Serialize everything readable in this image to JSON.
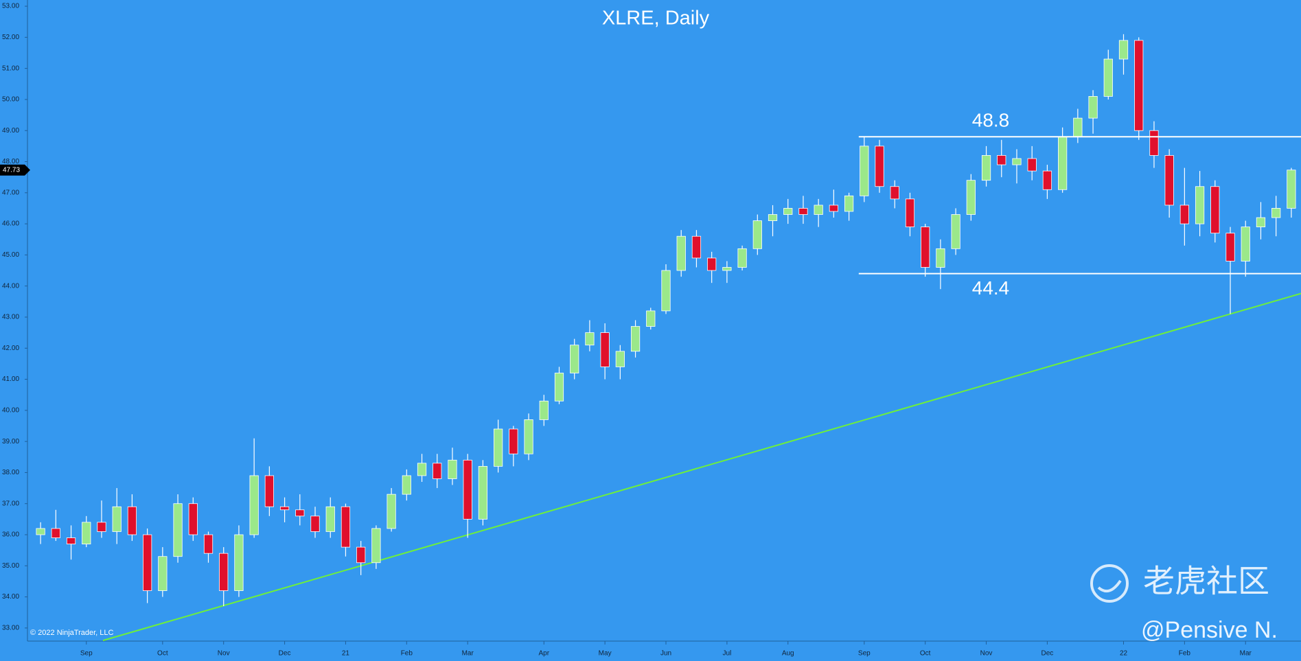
{
  "chart_data": {
    "type": "candlestick",
    "title": "XLRE, Daily",
    "categories": [
      null,
      null,
      null,
      "Sep",
      null,
      null,
      null,
      null,
      "Oct",
      null,
      null,
      null,
      "Nov",
      null,
      null,
      null,
      "Dec",
      null,
      null,
      null,
      "21",
      null,
      null,
      null,
      "Feb",
      null,
      null,
      null,
      "Mar",
      null,
      null,
      null,
      null,
      "Apr",
      null,
      null,
      null,
      "May",
      null,
      null,
      null,
      "Jun",
      null,
      null,
      null,
      "Jul",
      null,
      null,
      null,
      "Aug",
      null,
      null,
      null,
      null,
      "Sep",
      null,
      null,
      null,
      "Oct",
      null,
      null,
      null,
      "Nov",
      null,
      null,
      null,
      "Dec",
      null,
      null,
      null,
      null,
      "22",
      null,
      null,
      null,
      "Feb",
      null,
      null,
      null,
      "Mar",
      null,
      null,
      null
    ],
    "ohlc": [
      [
        36.0,
        36.4,
        35.7,
        36.2
      ],
      [
        36.2,
        36.8,
        35.8,
        35.9
      ],
      [
        35.9,
        36.3,
        35.2,
        35.7
      ],
      [
        35.7,
        36.6,
        35.6,
        36.4
      ],
      [
        36.4,
        37.1,
        35.9,
        36.1
      ],
      [
        36.1,
        37.5,
        35.7,
        36.9
      ],
      [
        36.9,
        37.3,
        35.8,
        36.0
      ],
      [
        36.0,
        36.2,
        33.8,
        34.2
      ],
      [
        34.2,
        35.6,
        34.0,
        35.3
      ],
      [
        35.3,
        37.3,
        35.1,
        37.0
      ],
      [
        37.0,
        37.2,
        35.8,
        36.0
      ],
      [
        36.0,
        36.1,
        35.1,
        35.4
      ],
      [
        35.4,
        35.6,
        33.7,
        34.2
      ],
      [
        34.2,
        36.3,
        34.0,
        36.0
      ],
      [
        36.0,
        39.1,
        35.9,
        37.9
      ],
      [
        37.9,
        38.2,
        36.6,
        36.9
      ],
      [
        36.9,
        37.2,
        36.4,
        36.8
      ],
      [
        36.8,
        37.3,
        36.3,
        36.6
      ],
      [
        36.6,
        36.9,
        35.9,
        36.1
      ],
      [
        36.1,
        37.2,
        35.9,
        36.9
      ],
      [
        36.9,
        37.0,
        35.3,
        35.6
      ],
      [
        35.6,
        35.8,
        34.7,
        35.1
      ],
      [
        35.1,
        36.3,
        34.9,
        36.2
      ],
      [
        36.2,
        37.5,
        36.1,
        37.3
      ],
      [
        37.3,
        38.1,
        37.1,
        37.9
      ],
      [
        37.9,
        38.6,
        37.7,
        38.3
      ],
      [
        38.3,
        38.6,
        37.5,
        37.8
      ],
      [
        37.8,
        38.8,
        37.6,
        38.4
      ],
      [
        38.4,
        38.6,
        35.9,
        36.5
      ],
      [
        36.5,
        38.4,
        36.3,
        38.2
      ],
      [
        38.2,
        39.7,
        38.0,
        39.4
      ],
      [
        39.4,
        39.5,
        38.2,
        38.6
      ],
      [
        38.6,
        39.9,
        38.4,
        39.7
      ],
      [
        39.7,
        40.5,
        39.5,
        40.3
      ],
      [
        40.3,
        41.4,
        40.2,
        41.2
      ],
      [
        41.2,
        42.3,
        41.0,
        42.1
      ],
      [
        42.1,
        42.9,
        41.9,
        42.5
      ],
      [
        42.5,
        42.8,
        41.0,
        41.4
      ],
      [
        41.4,
        42.1,
        41.0,
        41.9
      ],
      [
        41.9,
        42.9,
        41.7,
        42.7
      ],
      [
        42.7,
        43.3,
        42.6,
        43.2
      ],
      [
        43.2,
        44.7,
        43.1,
        44.5
      ],
      [
        44.5,
        45.8,
        44.3,
        45.6
      ],
      [
        45.6,
        45.8,
        44.6,
        44.9
      ],
      [
        44.9,
        45.1,
        44.1,
        44.5
      ],
      [
        44.5,
        44.8,
        44.1,
        44.6
      ],
      [
        44.6,
        45.3,
        44.5,
        45.2
      ],
      [
        45.2,
        46.3,
        45.0,
        46.1
      ],
      [
        46.1,
        46.6,
        45.6,
        46.3
      ],
      [
        46.3,
        46.8,
        46.0,
        46.5
      ],
      [
        46.5,
        46.9,
        46.0,
        46.3
      ],
      [
        46.3,
        46.8,
        45.9,
        46.6
      ],
      [
        46.6,
        47.1,
        46.2,
        46.4
      ],
      [
        46.4,
        47.0,
        46.1,
        46.9
      ],
      [
        46.9,
        48.8,
        46.7,
        48.5
      ],
      [
        48.5,
        48.7,
        47.0,
        47.2
      ],
      [
        47.2,
        47.4,
        46.5,
        46.8
      ],
      [
        46.8,
        47.0,
        45.6,
        45.9
      ],
      [
        45.9,
        46.0,
        44.3,
        44.6
      ],
      [
        44.6,
        45.5,
        43.9,
        45.2
      ],
      [
        45.2,
        46.5,
        45.0,
        46.3
      ],
      [
        46.3,
        47.6,
        46.1,
        47.4
      ],
      [
        47.4,
        48.5,
        47.2,
        48.2
      ],
      [
        48.2,
        48.7,
        47.5,
        47.9
      ],
      [
        47.9,
        48.4,
        47.3,
        48.1
      ],
      [
        48.1,
        48.5,
        47.4,
        47.7
      ],
      [
        47.7,
        47.9,
        46.8,
        47.1
      ],
      [
        47.1,
        49.1,
        47.0,
        48.8
      ],
      [
        48.8,
        49.7,
        48.6,
        49.4
      ],
      [
        49.4,
        50.3,
        48.9,
        50.1
      ],
      [
        50.1,
        51.6,
        50.0,
        51.3
      ],
      [
        51.3,
        52.1,
        50.8,
        51.9
      ],
      [
        51.9,
        52.0,
        48.7,
        49.0
      ],
      [
        49.0,
        49.3,
        47.8,
        48.2
      ],
      [
        48.2,
        48.4,
        46.2,
        46.6
      ],
      [
        46.6,
        47.8,
        45.3,
        46.0
      ],
      [
        46.0,
        47.7,
        45.6,
        47.2
      ],
      [
        47.2,
        47.4,
        45.4,
        45.7
      ],
      [
        45.7,
        45.9,
        43.1,
        44.8
      ],
      [
        44.8,
        46.1,
        44.3,
        45.9
      ],
      [
        45.9,
        46.7,
        45.5,
        46.2
      ],
      [
        46.2,
        46.9,
        45.6,
        46.5
      ],
      [
        46.5,
        47.8,
        46.2,
        47.73
      ]
    ],
    "up_color": "#9be88a",
    "down_color": "#e0102c",
    "ylim": [
      32.6,
      53.2
    ],
    "yticks": [
      {
        "value": 33,
        "label": "33.00"
      },
      {
        "value": 34,
        "label": "34.00"
      },
      {
        "value": 35,
        "label": "35.00"
      },
      {
        "value": 36,
        "label": "36.00"
      },
      {
        "value": 37,
        "label": "37.00"
      },
      {
        "value": 38,
        "label": "38.00"
      },
      {
        "value": 39,
        "label": "39.00"
      },
      {
        "value": 40,
        "label": "40.00"
      },
      {
        "value": 41,
        "label": "41.00"
      },
      {
        "value": 42,
        "label": "42.00"
      },
      {
        "value": 43,
        "label": "43.00"
      },
      {
        "value": 44,
        "label": "44.00"
      },
      {
        "value": 45,
        "label": "45.00"
      },
      {
        "value": 46,
        "label": "46.00"
      },
      {
        "value": 47,
        "label": "47.00"
      },
      {
        "value": 48,
        "label": "48.00"
      },
      {
        "value": 49,
        "label": "49.00"
      },
      {
        "value": 50,
        "label": "50.00"
      },
      {
        "value": 51,
        "label": "51.00"
      },
      {
        "value": 52,
        "label": "52.00"
      },
      {
        "value": 53,
        "label": "53.00"
      }
    ],
    "last_price": 47.73,
    "levels": [
      48.8,
      44.4
    ],
    "trendline": {
      "color": "#6ef03a",
      "at": [
        21,
        78
      ],
      "values": [
        35.0,
        43.1
      ]
    },
    "copyright": "© 2022 NinjaTrader, LLC",
    "watermark": "老虎社区",
    "author": "@Pensive N."
  }
}
